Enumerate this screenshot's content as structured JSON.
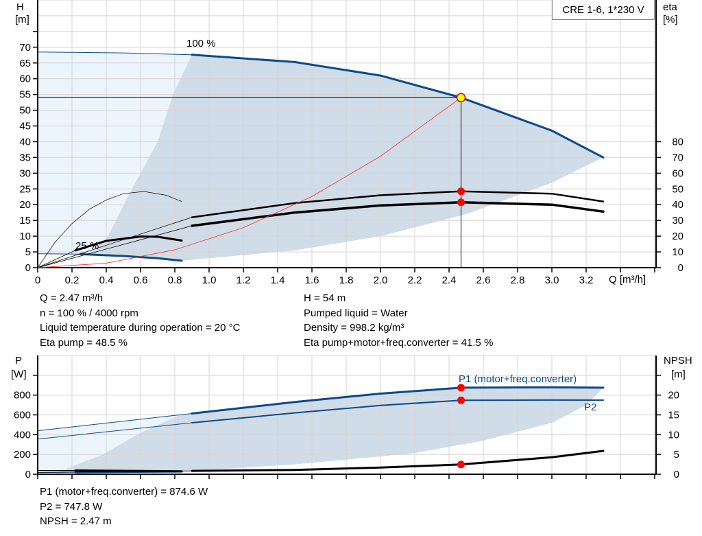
{
  "model_label": "CRE 1-6, 1*230 V",
  "colors": {
    "curve_blue": "#0b4a8b",
    "fill_dark": "#d0dce7",
    "fill_light": "#ecf4fc",
    "grid": "#d6d6d6",
    "duty_point": "#ff0000",
    "system_curve": "#ff3b3b"
  },
  "chart_data": [
    {
      "type": "line",
      "title": "",
      "xlabel": "Q [m³/h]",
      "ylabel_left": "H",
      "ylabel_left_unit": "[m]",
      "ylabel_right": "eta",
      "ylabel_right_unit": "[%]",
      "xlim": [
        0,
        3.6
      ],
      "ylim_left": [
        0,
        85
      ],
      "ylim_right": [
        0,
        170
      ],
      "grid": true,
      "x_ticks": [
        "0",
        "0.2",
        "0.4",
        "0.6",
        "0.8",
        "1.0",
        "1.2",
        "1.4",
        "1.6",
        "1.8",
        "2.0",
        "2.2",
        "2.4",
        "2.6",
        "2.8",
        "3.0",
        "3.2"
      ],
      "y_left_ticks": [
        "0",
        "5",
        "10",
        "15",
        "20",
        "25",
        "30",
        "35",
        "40",
        "45",
        "50",
        "55",
        "60",
        "65",
        "70"
      ],
      "y_right_ticks": [
        "0",
        "10",
        "20",
        "30",
        "40",
        "50",
        "60",
        "70",
        "80"
      ],
      "annotations": [
        "100 %",
        "25 %"
      ],
      "series": [
        {
          "label": "100 %",
          "axis": "left",
          "Q": [
            0,
            0.5,
            0.9,
            1.5,
            2.0,
            2.47,
            3.0,
            3.3
          ],
          "H": [
            68.5,
            68.2,
            67.6,
            65.3,
            61,
            54,
            43.5,
            35
          ]
        },
        {
          "label": "25 %",
          "axis": "left",
          "Q": [
            0,
            0.25,
            0.5,
            0.7,
            0.84
          ],
          "H": [
            4.4,
            4.3,
            3.7,
            3.0,
            2.2
          ]
        },
        {
          "axis": "right",
          "Q": [
            0,
            0.9,
            1.5,
            2.0,
            2.47,
            3.0,
            3.3
          ],
          "eta": [
            0,
            32,
            41,
            46,
            48.5,
            47,
            42
          ]
        },
        {
          "axis": "right",
          "Q": [
            0,
            0.9,
            1.5,
            2.0,
            2.47,
            3.0,
            3.3
          ],
          "eta": [
            0,
            26.6,
            35,
            39.5,
            41.5,
            40,
            35.6
          ]
        },
        {
          "axis": "right",
          "Q": [
            0,
            0.1,
            0.2,
            0.3,
            0.4,
            0.5,
            0.62,
            0.75,
            0.84
          ],
          "eta": [
            0,
            16,
            28,
            37,
            43,
            47,
            48.4,
            46,
            42
          ]
        },
        {
          "axis": "right",
          "Q": [
            0,
            0.22,
            0.4,
            0.6,
            0.7,
            0.84
          ],
          "eta": [
            0,
            11,
            17,
            19.8,
            19.6,
            17.2
          ]
        },
        {
          "label": "system",
          "axis": "left",
          "Q": [
            0,
            0.4,
            0.8,
            1.2,
            1.6,
            2.0,
            2.47
          ],
          "H": [
            0,
            1.42,
            5.66,
            12.7,
            22.6,
            35.4,
            54
          ]
        }
      ],
      "operating_range_lower": {
        "Q": [
          0.84,
          1.5,
          2.0,
          2.5,
          3.0,
          3.3
        ],
        "H": [
          2.2,
          5.5,
          10,
          17,
          27,
          35
        ]
      },
      "operating_range_left": {
        "Q": [
          0.3,
          0.41,
          0.55,
          0.7,
          0.79,
          0.9
        ],
        "H": [
          4.3,
          10,
          25,
          40,
          55,
          67.6
        ]
      },
      "duty_point": {
        "Q": 2.47,
        "H": 54,
        "eta_pump": 48.5,
        "eta_total": 41.5
      }
    },
    {
      "type": "line",
      "title": "",
      "xlabel": "",
      "ylabel_left": "P",
      "ylabel_left_unit": "[W]",
      "ylabel_right": "NPSH",
      "ylabel_right_unit": "[m]",
      "xlim": [
        0,
        3.6
      ],
      "ylim_left": [
        0,
        1200
      ],
      "ylim_right": [
        0,
        30
      ],
      "grid": true,
      "y_left_ticks": [
        "0",
        "200",
        "400",
        "600",
        "800"
      ],
      "y_right_ticks": [
        "0",
        "5",
        "10",
        "15",
        "20"
      ],
      "series": [
        {
          "label": "P1 (motor+freq.converter)",
          "axis": "left",
          "Q": [
            0,
            0.9,
            1.5,
            2.0,
            2.47,
            3.0,
            3.3
          ],
          "P": [
            440,
            614,
            730,
            815,
            874.6,
            878,
            875
          ]
        },
        {
          "label": "P2",
          "axis": "left",
          "Q": [
            0,
            0.9,
            1.5,
            2.0,
            2.47,
            3.0,
            3.3
          ],
          "P": [
            355,
            520,
            620,
            695,
            747.8,
            750,
            749
          ]
        },
        {
          "axis": "left",
          "Q": [
            0,
            0.22,
            0.84
          ],
          "P": [
            15,
            20,
            28
          ]
        },
        {
          "axis": "left",
          "Q": [
            0,
            0.22,
            0.84
          ],
          "P": [
            38,
            38,
            30
          ]
        },
        {
          "label": "NPSH",
          "axis": "right",
          "Q": [
            0,
            0.9,
            1.5,
            2.0,
            2.47,
            3.0,
            3.3
          ],
          "NPSH": [
            0.5,
            0.85,
            1.1,
            1.7,
            2.47,
            4.3,
            5.9
          ]
        }
      ],
      "operating_range_lower": {
        "Q": [
          0.84,
          1.5,
          2.0,
          2.2,
          2.6,
          3.0,
          3.2,
          3.3
        ],
        "P": [
          25,
          100,
          180,
          214,
          340,
          520,
          700,
          875
        ]
      },
      "operating_range_left": {
        "Q": [
          0.1,
          0.38,
          0.58,
          0.83,
          0.9
        ],
        "P": [
          10,
          200,
          400,
          600,
          614
        ]
      },
      "duty_point": {
        "Q": 2.47,
        "P1": 874.6,
        "P2": 747.8,
        "NPSH": 2.47
      }
    }
  ],
  "info_top_left": [
    "Q = 2.47 m³/h",
    "n = 100 % / 4000 rpm",
    "Liquid temperature during operation = 20 °C",
    "Eta pump = 48.5 %"
  ],
  "info_top_right": [
    "H = 54 m",
    "Pumped liquid = Water",
    "Density = 998.2 kg/m³",
    "Eta pump+motor+freq.converter = 41.5 %"
  ],
  "info_bottom": [
    "P1 (motor+freq.converter) = 874.6 W",
    "P2 = 747.8 W",
    "NPSH = 2.47 m"
  ]
}
